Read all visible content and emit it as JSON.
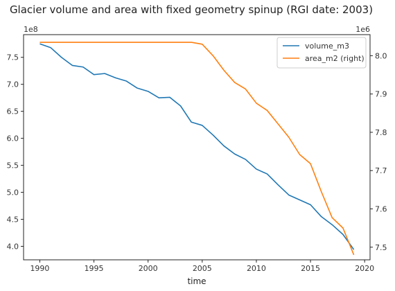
{
  "chart_data": {
    "type": "line",
    "title": "Glacier volume and area with fixed geometry spinup (RGI date: 2003)",
    "xlabel": "time",
    "xlim": [
      1988.5,
      2020.5
    ],
    "x_ticks": [
      1990,
      1995,
      2000,
      2005,
      2010,
      2015,
      2020
    ],
    "left_axis": {
      "ylim": [
        3.75,
        7.92
      ],
      "multiplier_label": "1e8",
      "ticks": [
        4.0,
        4.5,
        5.0,
        5.5,
        6.0,
        6.5,
        7.0,
        7.5
      ],
      "tick_labels": [
        "4.0",
        "4.5",
        "5.0",
        "5.5",
        "6.0",
        "6.5",
        "7.0",
        "7.5"
      ]
    },
    "right_axis": {
      "ylim": [
        7.467,
        8.055
      ],
      "multiplier_label": "1e6",
      "ticks": [
        7.5,
        7.6,
        7.7,
        7.8,
        7.9,
        8.0
      ],
      "tick_labels": [
        "7.5",
        "7.6",
        "7.7",
        "7.8",
        "7.9",
        "8.0"
      ]
    },
    "x": [
      1990,
      1991,
      1992,
      1993,
      1994,
      1995,
      1996,
      1997,
      1998,
      1999,
      2000,
      2001,
      2002,
      2003,
      2004,
      2005,
      2006,
      2007,
      2008,
      2009,
      2010,
      2011,
      2012,
      2013,
      2014,
      2015,
      2016,
      2017,
      2018,
      2019
    ],
    "series": [
      {
        "name": "volume_m3",
        "axis": "left",
        "color": "#1f77b4",
        "values": [
          7.75,
          7.68,
          7.5,
          7.35,
          7.32,
          7.18,
          7.2,
          7.12,
          7.06,
          6.93,
          6.87,
          6.75,
          6.76,
          6.6,
          6.3,
          6.24,
          6.06,
          5.86,
          5.71,
          5.61,
          5.43,
          5.34,
          5.14,
          4.95,
          4.86,
          4.77,
          4.55,
          4.4,
          4.22,
          3.94
        ]
      },
      {
        "name": "area_m2 (right)",
        "axis": "right",
        "color": "#ff7f0e",
        "values": [
          8.035,
          8.035,
          8.035,
          8.035,
          8.035,
          8.035,
          8.035,
          8.035,
          8.035,
          8.035,
          8.035,
          8.035,
          8.035,
          8.035,
          8.035,
          8.03,
          8.0,
          7.962,
          7.93,
          7.913,
          7.876,
          7.857,
          7.822,
          7.787,
          7.742,
          7.718,
          7.645,
          7.577,
          7.55,
          7.48
        ]
      }
    ],
    "legend": {
      "position": "top-right"
    },
    "grid": false
  }
}
